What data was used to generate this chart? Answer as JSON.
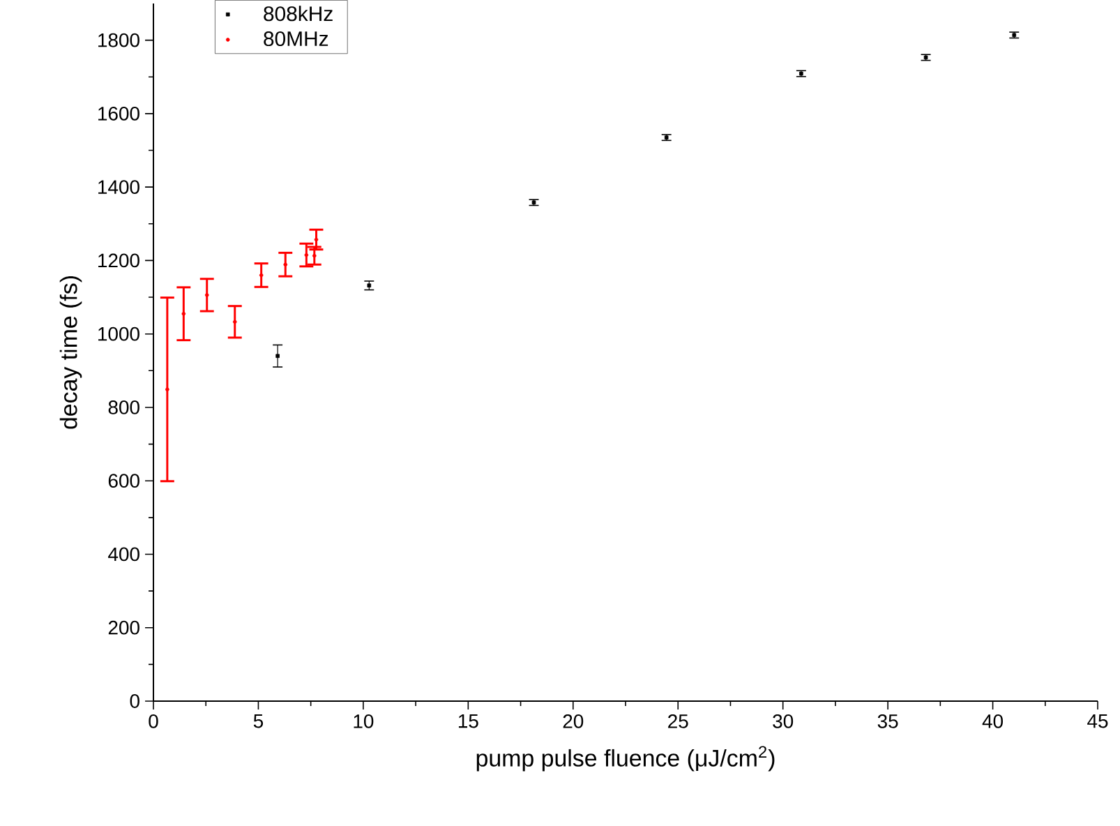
{
  "chart_data": {
    "type": "scatter",
    "xlabel": "pump pulse fluence (μJ/cm$^{2}$)",
    "ylabel": "decay time (fs)",
    "xlim": [
      0,
      45
    ],
    "xticks": [
      0,
      5,
      10,
      15,
      20,
      25,
      30,
      35,
      40,
      45
    ],
    "ylim": [
      0,
      1900
    ],
    "yticks": [
      0,
      200,
      400,
      600,
      800,
      1000,
      1200,
      1400,
      1600,
      1800
    ],
    "grid": false,
    "legend": "top left",
    "series": [
      {
        "name": "808kHz",
        "color": "#000000",
        "marker": "square",
        "x": [
          5.92,
          10.28,
          18.13,
          24.45,
          30.87,
          36.81,
          41.02
        ],
        "values": [
          940,
          1132,
          1358,
          1535,
          1709,
          1753,
          1814
        ],
        "errors": [
          30,
          12,
          8,
          8,
          8,
          8,
          8
        ]
      },
      {
        "name": "80MHz",
        "color": "#ff0000",
        "marker": "circle",
        "x": [
          0.66,
          1.44,
          2.55,
          3.88,
          5.14,
          6.29,
          7.29,
          7.67,
          7.76
        ],
        "values": [
          849,
          1055,
          1106,
          1033,
          1160,
          1189,
          1215,
          1213,
          1257
        ],
        "errors": [
          250,
          72,
          44,
          43,
          32,
          32,
          31,
          24,
          27
        ]
      }
    ]
  }
}
